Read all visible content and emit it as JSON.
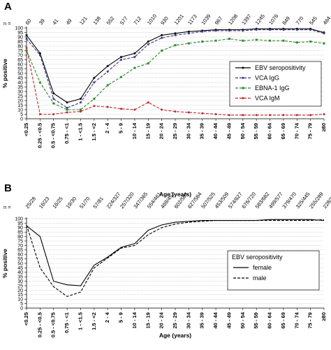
{
  "chart_data": [
    {
      "type": "line",
      "panel_label": "A",
      "n_prefix": "n =",
      "n_labels": [
        "60",
        "39",
        "41",
        "49",
        "121",
        "138",
        "552",
        "577",
        "712",
        "1010",
        "930",
        "1201",
        "1173",
        "1039",
        "967",
        "1208",
        "1397",
        "1245",
        "1076",
        "849",
        "770",
        "545",
        "464"
      ],
      "categories": [
        "<0.25",
        "0.25 - <0.5",
        "0.5 - <0.75",
        "0.75 - <1",
        "1 - <1.5",
        "1.5 - <2",
        "2 - 4",
        "5 - 9",
        "10 - 14",
        "15 - 19",
        "20 - 24",
        "25 - 29",
        "30 - 34",
        "35 - 39",
        "40 - 44",
        "45 - 49",
        "50 - 54",
        "55 - 59",
        "60 - 64",
        "65 - 69",
        "70 - 74",
        "75 - 79",
        "≥80"
      ],
      "xlabel": "Age (years)",
      "ylabel": "% positive",
      "ylim": [
        0,
        100
      ],
      "yticks": [
        0,
        5,
        10,
        15,
        20,
        25,
        30,
        35,
        40,
        45,
        50,
        55,
        60,
        65,
        70,
        75,
        80,
        85,
        90,
        95,
        100
      ],
      "grid": "horizontal",
      "legend_position": "right-center",
      "series": [
        {
          "name": "EBV seropositivity",
          "color": "#000000",
          "dash": "solid",
          "marker": "dot",
          "values": [
            92,
            72,
            28,
            18,
            22,
            45,
            58,
            68,
            72,
            85,
            92,
            94,
            96,
            97,
            98,
            98,
            98,
            99,
            99,
            99,
            99,
            99,
            95
          ]
        },
        {
          "name": "VCA IgG",
          "color": "#3c3c8c",
          "dash": "dash",
          "marker": "dot",
          "values": [
            88,
            70,
            22,
            12,
            18,
            40,
            52,
            65,
            68,
            82,
            89,
            92,
            94,
            96,
            97,
            97,
            97,
            98,
            98,
            98,
            98,
            98,
            94
          ]
        },
        {
          "name": "EBNA-1 IgG",
          "color": "#2e8b2e",
          "dash": "dash",
          "marker": "square",
          "values": [
            75,
            40,
            17,
            10,
            10,
            22,
            37,
            46,
            56,
            61,
            75,
            81,
            83,
            85,
            86,
            88,
            86,
            87,
            86,
            86,
            84,
            85,
            83
          ]
        },
        {
          "name": "VCA IgM",
          "color": "#c0282d",
          "dash": "dash",
          "marker": "dot",
          "values": [
            78,
            5,
            5,
            7,
            8,
            14,
            13,
            11,
            10,
            18,
            10,
            8,
            7,
            6,
            5,
            4,
            4,
            4,
            4,
            4,
            4,
            4,
            5
          ]
        }
      ]
    },
    {
      "type": "line",
      "panel_label": "B",
      "n_prefix": "n =",
      "n_labels": [
        "25/28",
        "16/23",
        "16/25",
        "19/30",
        "51/70",
        "57/81",
        "224/327",
        "257/320",
        "347/365",
        "554/461",
        "469/452",
        "602/584",
        "627/584",
        "507/525",
        "453/509",
        "574/627",
        "676/720",
        "583/682",
        "499/577",
        "379/470",
        "325/445",
        "255/289",
        "228/174"
      ],
      "categories": [
        "<0.25",
        "0.25 - <0.5",
        "0.5 - <0.75",
        "0.75 - <1",
        "1 - <1.5",
        "1.5 - <2",
        "2 - 4",
        "5 - 9",
        "10 - 14",
        "15 - 19",
        "20 - 24",
        "25 - 29",
        "30 - 34",
        "35 - 39",
        "40 - 44",
        "45 - 49",
        "50 - 54",
        "55 - 59",
        "60 - 64",
        "65 - 69",
        "70 - 74",
        "75 - 79",
        "≥80"
      ],
      "xlabel": "Age (years)",
      "ylabel": "% positive",
      "ylim": [
        0,
        100
      ],
      "yticks": [
        0,
        5,
        10,
        15,
        20,
        25,
        30,
        35,
        40,
        45,
        50,
        55,
        60,
        65,
        70,
        75,
        80,
        85,
        90,
        95,
        100
      ],
      "grid": "horizontal",
      "legend_position": "right-center",
      "legend_title": "EBV seropositivity",
      "series": [
        {
          "name": "female",
          "color": "#000000",
          "dash": "solid",
          "marker": "none",
          "values": [
            92,
            80,
            30,
            26,
            25,
            48,
            57,
            68,
            72,
            87,
            93,
            96,
            97,
            98,
            98,
            98,
            98,
            98,
            99,
            99,
            99,
            99,
            98
          ]
        },
        {
          "name": "male",
          "color": "#000000",
          "dash": "dash",
          "marker": "none",
          "values": [
            93,
            45,
            24,
            13,
            18,
            45,
            56,
            67,
            70,
            82,
            90,
            94,
            96,
            97,
            98,
            98,
            98,
            98,
            98,
            98,
            98,
            98,
            99
          ]
        }
      ]
    }
  ]
}
